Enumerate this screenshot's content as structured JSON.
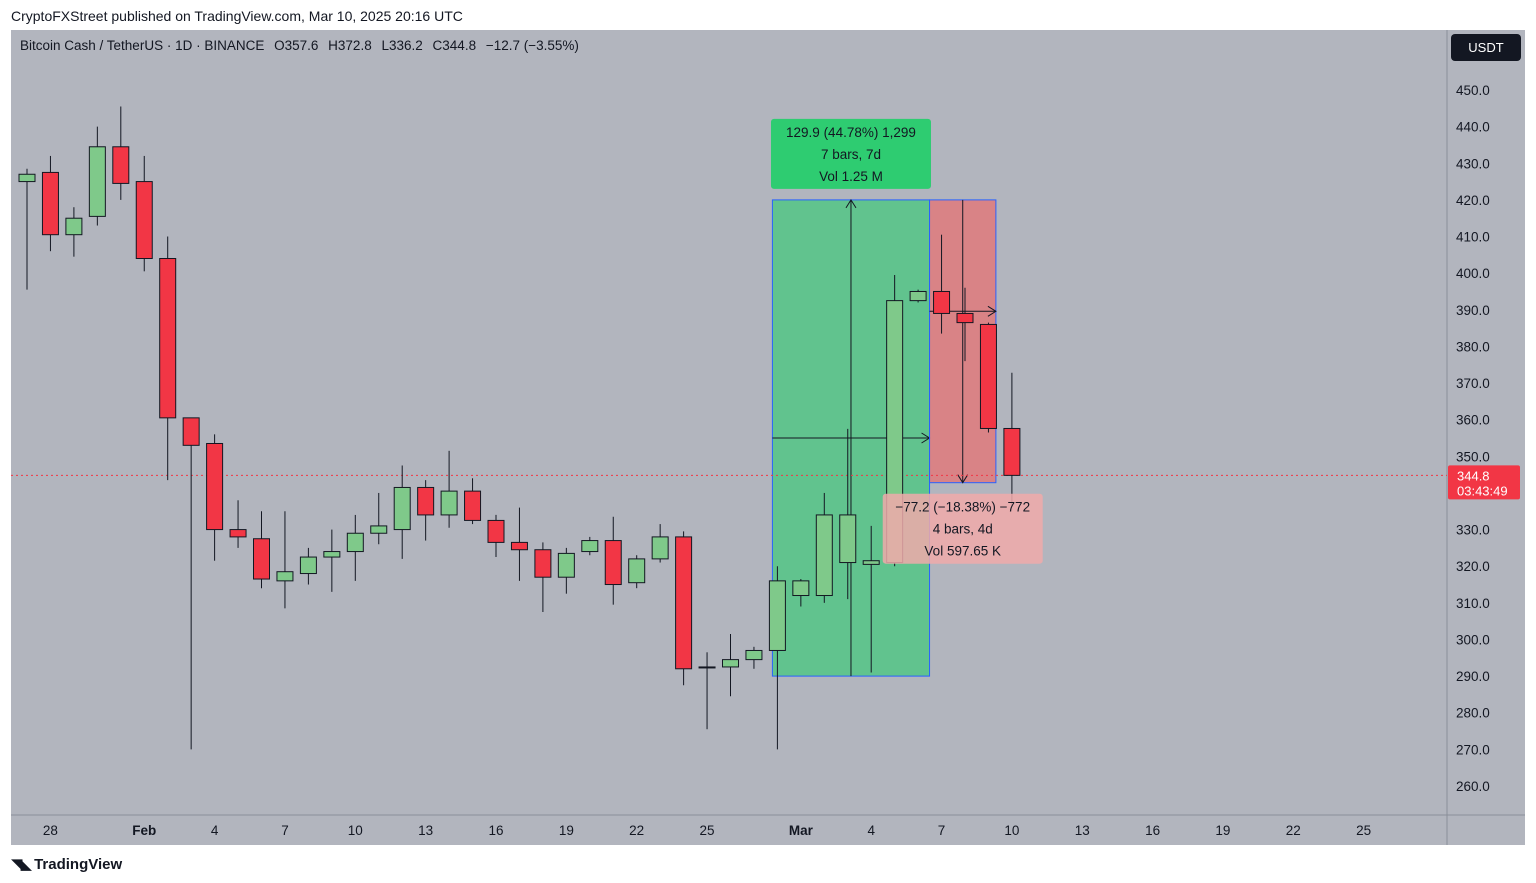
{
  "header": {
    "publisher": "CryptoFXStreet published on TradingView.com, Mar 10, 2025 20:16 UTC"
  },
  "legend": {
    "symbol": "Bitcoin Cash / TetherUS · 1D · BINANCE",
    "open": "O357.6",
    "high": "H372.8",
    "low": "L336.2",
    "close": "C344.8",
    "change": "−12.7 (−3.55%)"
  },
  "currency_label": "USDT",
  "price_tag": {
    "price": "344.8",
    "countdown": "03:43:49",
    "color": "#f23645"
  },
  "measure_up": {
    "line1": "129.9 (44.78%) 1,299",
    "line2": "7 bars, 7d",
    "line3": "Vol 1.25 M"
  },
  "measure_down": {
    "line1": "−77.2 (−18.38%) −772",
    "line2": "4 bars, 4d",
    "line3": "Vol 597.65 K"
  },
  "footer": {
    "brand": "TradingView",
    "brand_icon": "tradingview-logo-icon"
  },
  "colors": {
    "up": "#7fc98a",
    "down": "#f23645",
    "accent": "#2962ff",
    "measure_up": "#2ecc71",
    "measure_down": "#e57373"
  },
  "chart_data": {
    "type": "candlestick",
    "title": "Bitcoin Cash / TetherUS · 1D · BINANCE",
    "ylim": [
      252,
      465
    ],
    "y_ticks": [
      260.0,
      270.0,
      280.0,
      290.0,
      300.0,
      310.0,
      320.0,
      330.0,
      340.0,
      350.0,
      360.0,
      370.0,
      380.0,
      390.0,
      400.0,
      410.0,
      420.0,
      430.0,
      440.0,
      450.0
    ],
    "x_tick_labels": [
      {
        "i": 1,
        "label": "28"
      },
      {
        "i": 5,
        "label": "Feb"
      },
      {
        "i": 8,
        "label": "4"
      },
      {
        "i": 11,
        "label": "7"
      },
      {
        "i": 14,
        "label": "10"
      },
      {
        "i": 17,
        "label": "13"
      },
      {
        "i": 20,
        "label": "16"
      },
      {
        "i": 23,
        "label": "19"
      },
      {
        "i": 26,
        "label": "22"
      },
      {
        "i": 29,
        "label": "25"
      },
      {
        "i": 33,
        "label": "Mar"
      },
      {
        "i": 36,
        "label": "4"
      },
      {
        "i": 39,
        "label": "7"
      },
      {
        "i": 42,
        "label": "10"
      },
      {
        "i": 45,
        "label": "13"
      },
      {
        "i": 48,
        "label": "16"
      },
      {
        "i": 51,
        "label": "19"
      },
      {
        "i": 54,
        "label": "22"
      },
      {
        "i": 57,
        "label": "25"
      }
    ],
    "candles": [
      {
        "o": 425.0,
        "h": 428.5,
        "l": 395.5,
        "c": 427.0
      },
      {
        "o": 427.5,
        "h": 432.0,
        "l": 406.0,
        "c": 410.5
      },
      {
        "o": 410.5,
        "h": 418.0,
        "l": 404.5,
        "c": 415.0
      },
      {
        "o": 415.5,
        "h": 440.0,
        "l": 413.0,
        "c": 434.5
      },
      {
        "o": 434.5,
        "h": 445.5,
        "l": 420.0,
        "c": 424.5
      },
      {
        "o": 425.0,
        "h": 432.0,
        "l": 400.5,
        "c": 404.0
      },
      {
        "o": 404.0,
        "h": 410.0,
        "l": 343.5,
        "c": 360.5
      },
      {
        "o": 360.5,
        "h": 360.5,
        "l": 270.0,
        "c": 353.0
      },
      {
        "o": 353.5,
        "h": 356.0,
        "l": 321.5,
        "c": 330.0
      },
      {
        "o": 330.0,
        "h": 338.0,
        "l": 325.0,
        "c": 328.0
      },
      {
        "o": 327.5,
        "h": 335.0,
        "l": 314.0,
        "c": 316.5
      },
      {
        "o": 316.0,
        "h": 335.0,
        "l": 308.5,
        "c": 318.5
      },
      {
        "o": 318.0,
        "h": 325.0,
        "l": 315.0,
        "c": 322.5
      },
      {
        "o": 322.5,
        "h": 330.0,
        "l": 313.0,
        "c": 324.0
      },
      {
        "o": 324.0,
        "h": 334.0,
        "l": 316.0,
        "c": 329.0
      },
      {
        "o": 329.0,
        "h": 340.0,
        "l": 326.0,
        "c": 331.0
      },
      {
        "o": 330.0,
        "h": 347.5,
        "l": 322.0,
        "c": 341.5
      },
      {
        "o": 341.5,
        "h": 343.5,
        "l": 327.0,
        "c": 334.0
      },
      {
        "o": 334.0,
        "h": 351.5,
        "l": 330.5,
        "c": 340.5
      },
      {
        "o": 340.5,
        "h": 344.0,
        "l": 331.5,
        "c": 332.5
      },
      {
        "o": 332.5,
        "h": 334.0,
        "l": 322.5,
        "c": 326.5
      },
      {
        "o": 326.5,
        "h": 336.0,
        "l": 316.0,
        "c": 324.5
      },
      {
        "o": 324.5,
        "h": 326.5,
        "l": 307.5,
        "c": 317.0
      },
      {
        "o": 317.0,
        "h": 325.0,
        "l": 312.5,
        "c": 323.5
      },
      {
        "o": 324.0,
        "h": 328.0,
        "l": 323.0,
        "c": 327.0
      },
      {
        "o": 327.0,
        "h": 333.5,
        "l": 309.5,
        "c": 315.0
      },
      {
        "o": 315.5,
        "h": 323.0,
        "l": 314.0,
        "c": 322.0
      },
      {
        "o": 322.0,
        "h": 331.5,
        "l": 321.0,
        "c": 328.0
      },
      {
        "o": 328.0,
        "h": 329.5,
        "l": 287.5,
        "c": 292.0
      },
      {
        "o": 292.5,
        "h": 296.5,
        "l": 275.5,
        "c": 292.5
      },
      {
        "o": 292.5,
        "h": 301.5,
        "l": 284.5,
        "c": 294.5
      },
      {
        "o": 294.5,
        "h": 298.0,
        "l": 292.0,
        "c": 297.0
      },
      {
        "o": 297.0,
        "h": 320.0,
        "l": 270.0,
        "c": 316.0
      },
      {
        "o": 312.0,
        "h": 316.5,
        "l": 309.0,
        "c": 316.0
      },
      {
        "o": 312.0,
        "h": 340.0,
        "l": 310.0,
        "c": 334.0
      },
      {
        "o": 321.0,
        "h": 357.5,
        "l": 311.0,
        "c": 334.0
      },
      {
        "o": 320.5,
        "h": 331.0,
        "l": 291.0,
        "c": 321.5
      },
      {
        "o": 321.0,
        "h": 399.5,
        "l": 320.0,
        "c": 392.5
      },
      {
        "o": 392.5,
        "h": 395.5,
        "l": 392.0,
        "c": 395.0
      },
      {
        "o": 395.0,
        "h": 410.5,
        "l": 383.5,
        "c": 389.0
      },
      {
        "o": 389.0,
        "h": 396.0,
        "l": 376.0,
        "c": 386.5
      },
      {
        "o": 386.0,
        "h": 386.5,
        "l": 356.5,
        "c": 357.6
      },
      {
        "o": 357.6,
        "h": 372.8,
        "l": 336.2,
        "c": 344.8
      }
    ],
    "measure_up": {
      "from_index": 32,
      "to_index": 39,
      "from_price": 290.0,
      "to_price": 420.0,
      "change": 129.9,
      "percent": 44.78,
      "ticks": 1299,
      "bars": 7,
      "days": 7,
      "volume": "1.25 M"
    },
    "measure_down": {
      "from_index": 39,
      "to_index": 42,
      "from_price": 420.0,
      "to_price": 342.8,
      "change": -77.2,
      "percent": -18.38,
      "ticks": -772,
      "bars": 4,
      "days": 4,
      "volume": "597.65 K"
    },
    "last_price": 344.8
  }
}
